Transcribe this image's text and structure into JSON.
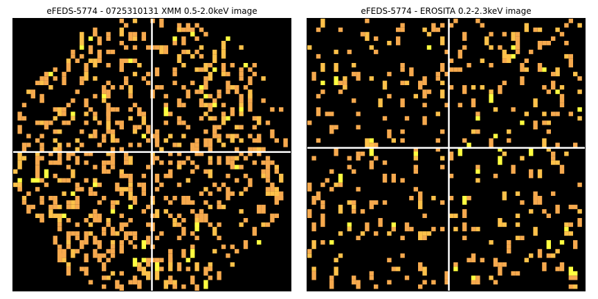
{
  "figure": {
    "left_panel": {
      "title": "eFEDS-5774 - 0725310131 XMM 0.5-2.0keV image",
      "image": "xmm-count-image",
      "crosshair_x": 0.5,
      "crosshair_y": 0.49
    },
    "right_panel": {
      "title": "eFEDS-5774 -  EROSITA 0.2-2.3keV image",
      "image": "erosita-count-image",
      "crosshair_x": 0.51,
      "crosshair_y": 0.475
    },
    "colors": {
      "background": "#000000",
      "low_count": "#f6a94e",
      "mid_count": "#fdc14a",
      "high_count": "#ffff40",
      "crosshair": "#ffffff"
    }
  }
}
